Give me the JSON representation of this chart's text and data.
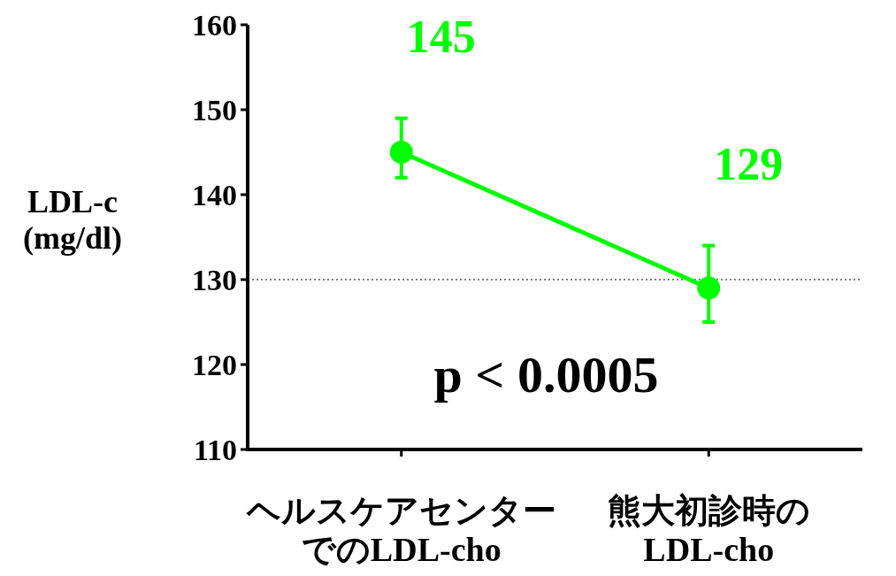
{
  "chart_data": {
    "type": "line",
    "ylabel": "LDL-c\n(mg/dl)",
    "categories": [
      "ヘルスケアセンターでのLDL-cho",
      "熊大初診時のLDL-cho"
    ],
    "series": [
      {
        "color": "#00ff00",
        "values": [
          145,
          129
        ],
        "errors": [
          [
            142,
            149
          ],
          [
            125,
            134
          ]
        ]
      }
    ],
    "ylim": [
      110,
      160
    ],
    "yticks": [
      110,
      120,
      130,
      140,
      150,
      160
    ],
    "ref_lines": [
      {
        "axis": "y",
        "value": 130,
        "line_style": "dotted",
        "color": "#000000"
      }
    ],
    "annotations": [
      "p < 0.0005"
    ],
    "data_labels": true,
    "marker": "circle",
    "line_style": "solid",
    "grid": false
  }
}
